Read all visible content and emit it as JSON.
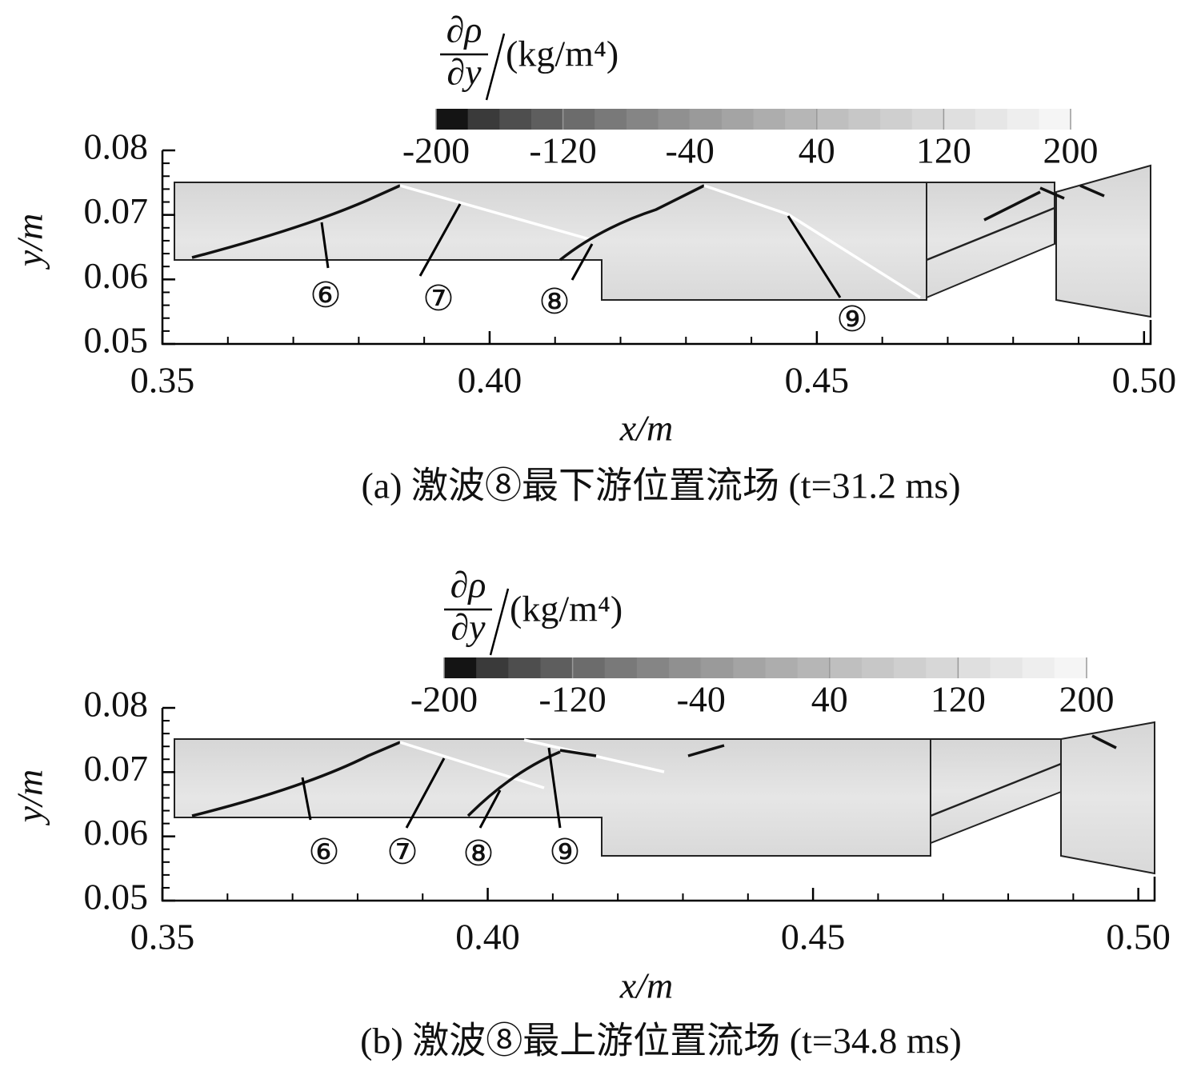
{
  "chart_data": [
    {
      "type": "contour",
      "caption": "(a) 激波⑧最下游位置流场 (t=31.2 ms)",
      "xlabel": "x/m",
      "ylabel": "y/m",
      "xlim": [
        0.35,
        0.501
      ],
      "ylim": [
        0.05,
        0.08
      ],
      "xticks": [
        0.35,
        {
          "value": 0.4,
          "label": "0.40"
        },
        0.45,
        {
          "value": 0.5,
          "label": "0.50"
        }
      ],
      "xminorticks": [
        0.36,
        0.37,
        0.38,
        0.39,
        0.41,
        0.42,
        0.43,
        0.44,
        0.46,
        0.47,
        0.48,
        0.49
      ],
      "yticks": [
        0.05,
        0.06,
        0.07,
        0.08
      ],
      "yminorticks": [
        0.052,
        0.054,
        0.056,
        0.058,
        0.062,
        0.064,
        0.066,
        0.068,
        0.072,
        0.074,
        0.076,
        0.078
      ],
      "colorbar": {
        "numerator": "∂ρ",
        "denominator": "∂y",
        "unit": "(kg/m⁴)",
        "lim": [
          -200,
          200
        ],
        "ticks": [
          -200,
          -120,
          -40,
          40,
          120,
          200
        ],
        "colormap": "gray"
      },
      "annotations": [
        "⑥",
        "⑦",
        "⑧",
        "⑨"
      ]
    },
    {
      "type": "contour",
      "caption": "(b) 激波⑧最上游位置流场 (t=34.8 ms)",
      "xlabel": "x/m",
      "ylabel": "y/m",
      "xlim": [
        0.35,
        0.5025
      ],
      "ylim": [
        0.05,
        0.08
      ],
      "xticks": [
        0.35,
        {
          "value": 0.4,
          "label": "0.40"
        },
        0.45,
        {
          "value": 0.5,
          "label": "0.50"
        }
      ],
      "xminorticks": [
        0.36,
        0.37,
        0.38,
        0.39,
        0.41,
        0.42,
        0.43,
        0.44,
        0.46,
        0.47,
        0.48,
        0.49
      ],
      "yticks": [
        0.05,
        0.06,
        0.07,
        0.08
      ],
      "yminorticks": [
        0.052,
        0.054,
        0.056,
        0.058,
        0.062,
        0.064,
        0.066,
        0.068,
        0.072,
        0.074,
        0.076,
        0.078
      ],
      "colorbar": {
        "numerator": "∂ρ",
        "denominator": "∂y",
        "unit": "(kg/m⁴)",
        "lim": [
          -200,
          200
        ],
        "ticks": [
          -200,
          -120,
          -40,
          40,
          120,
          200
        ],
        "colormap": "gray"
      },
      "annotations": [
        "⑥",
        "⑦",
        "⑧",
        "⑨"
      ]
    }
  ]
}
